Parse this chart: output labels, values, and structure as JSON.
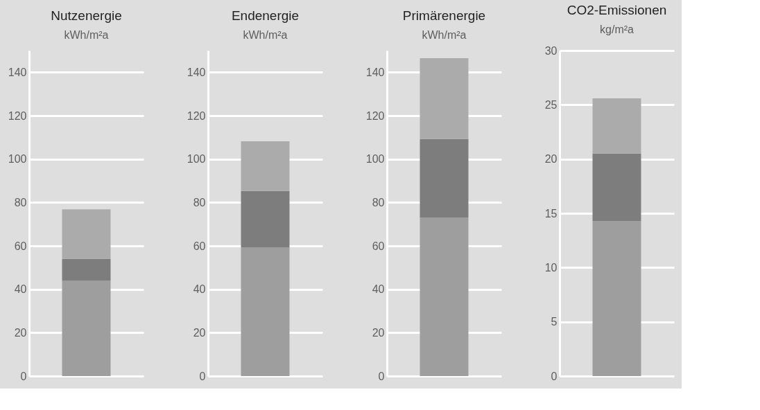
{
  "chart_data": [
    {
      "type": "bar",
      "title": "Nutzenergie",
      "subtitle": "kWh/m²a",
      "stacked": true,
      "categories": [
        null
      ],
      "ylim": [
        0,
        150
      ],
      "yticks": [
        0,
        20,
        40,
        60,
        80,
        100,
        120,
        140
      ],
      "grid": "y",
      "series": [
        {
          "color": "#9e9e9e",
          "values": [
            43.9
          ]
        },
        {
          "color": "#7d7d7d",
          "values": [
            10.1
          ]
        },
        {
          "color": "#ababab",
          "values": [
            22.8
          ]
        }
      ]
    },
    {
      "type": "bar",
      "title": "Endenergie",
      "subtitle": "kWh/m²a",
      "stacked": true,
      "categories": [
        null
      ],
      "ylim": [
        0,
        150
      ],
      "yticks": [
        0,
        20,
        40,
        60,
        80,
        100,
        120,
        140
      ],
      "grid": "y",
      "series": [
        {
          "color": "#9e9e9e",
          "values": [
            59.2
          ]
        },
        {
          "color": "#7d7d7d",
          "values": [
            26.1
          ]
        },
        {
          "color": "#ababab",
          "values": [
            22.9
          ]
        }
      ]
    },
    {
      "type": "bar",
      "title": "Primärenergie",
      "subtitle": "kWh/m²a",
      "stacked": true,
      "categories": [
        null
      ],
      "ylim": [
        0,
        150
      ],
      "yticks": [
        0,
        20,
        40,
        60,
        80,
        100,
        120,
        140
      ],
      "grid": "y",
      "series": [
        {
          "color": "#9e9e9e",
          "values": [
            73.1
          ]
        },
        {
          "color": "#7d7d7d",
          "values": [
            36.1
          ]
        },
        {
          "color": "#ababab",
          "values": [
            37.3
          ]
        }
      ]
    },
    {
      "type": "bar",
      "title": "CO2-Emissionen",
      "subtitle": "kg/m²a",
      "stacked": true,
      "categories": [
        null
      ],
      "ylim": [
        0,
        30
      ],
      "yticks": [
        0,
        5,
        10,
        15,
        20,
        25,
        30
      ],
      "grid": "y",
      "series": [
        {
          "color": "#9e9e9e",
          "values": [
            14.3
          ]
        },
        {
          "color": "#7d7d7d",
          "values": [
            6.2
          ]
        },
        {
          "color": "#ababab",
          "values": [
            5.1
          ]
        }
      ]
    }
  ]
}
